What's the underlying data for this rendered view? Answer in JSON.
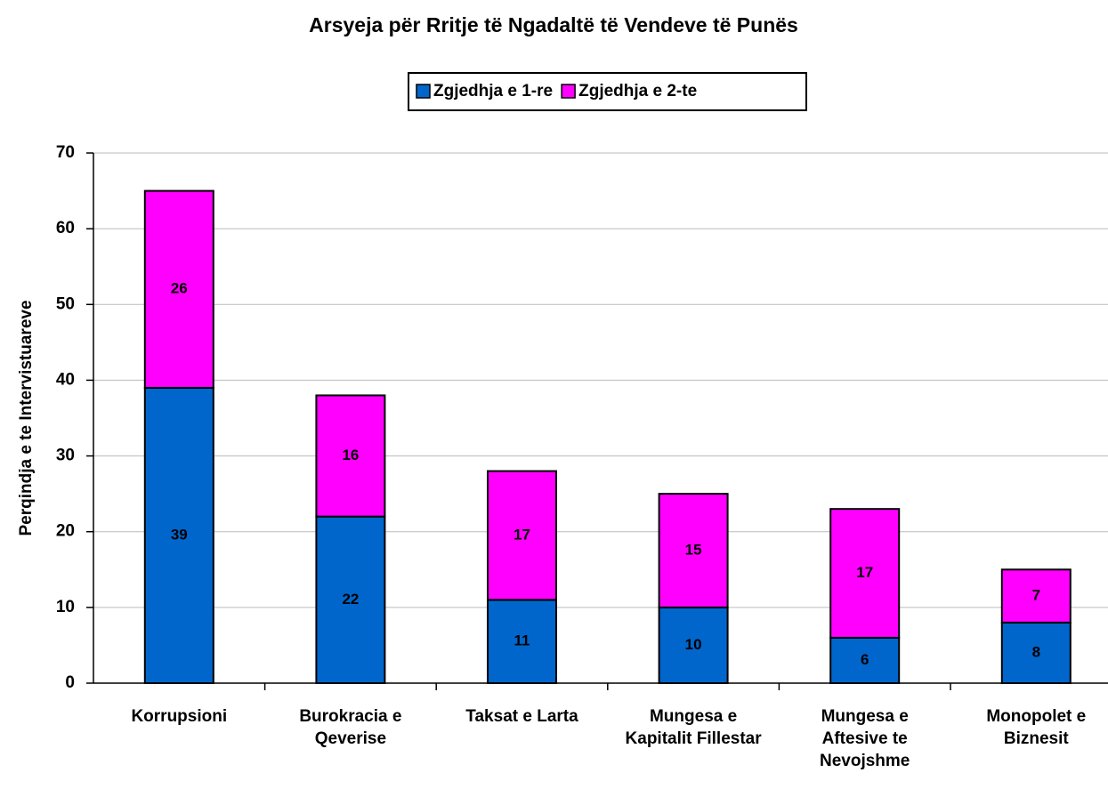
{
  "chart_data": {
    "type": "stacked_bar",
    "title": "Arsyeja për Rritje të Ngadaltë të Vendeve të Punës",
    "y_label": "Perqindja e te Intervistuareve",
    "categories": [
      "Korrupsioni",
      "Burokracia e Qeverise",
      "Taksat e Larta",
      "Mungesa e Kapitalit Fillestar",
      "Mungesa e Aftesive te Nevojshme",
      "Monopolet e Biznesit"
    ],
    "series": [
      {
        "name": "Zgjedhja e 1-re",
        "color": "#0066cc",
        "values": [
          39,
          22,
          11,
          10,
          6,
          8
        ]
      },
      {
        "name": "Zgjedhja e 2-te",
        "color": "#ff00ff",
        "values": [
          26,
          16,
          17,
          15,
          17,
          7
        ]
      }
    ],
    "ylim": [
      0,
      70
    ],
    "yticks": [
      0,
      10,
      20,
      30,
      40,
      50,
      60,
      70
    ],
    "grid": true,
    "legend": "top"
  }
}
